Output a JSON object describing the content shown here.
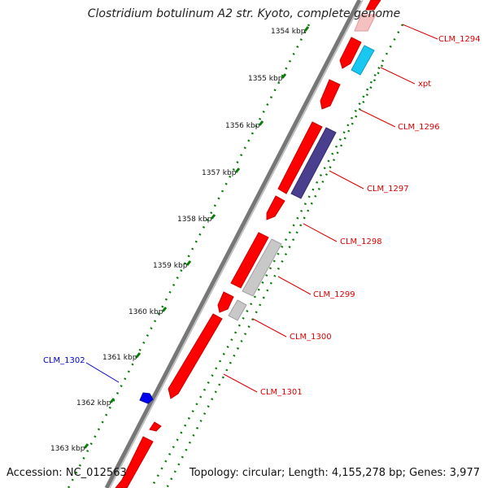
{
  "title": "Clostridium botulinum A2 str. Kyoto, complete genome",
  "footer": {
    "accession": "Accession: NC_012563",
    "summary": "Topology: circular; Length: 4,155,278 bp; Genes: 3,977"
  },
  "colors": {
    "forward_gene": "#ff0000",
    "reverse_gene": "#ff0000",
    "xpt_gene": "#19c8f0",
    "clm1297_gene": "#4a3f8f",
    "grey_gene": "#c8c8c8",
    "blue_gene": "#0000ee",
    "label_red": "#dd0000",
    "label_blue": "#0000cc",
    "tick_green": "#0a7a0a",
    "backbone": "#888888"
  },
  "ticks": [
    "1354 kbp",
    "1355 kbp",
    "1356 kbp",
    "1357 kbp",
    "1358 kbp",
    "1359 kbp",
    "1360 kbp",
    "1361 kbp",
    "1362 kbp",
    "1363 kbp"
  ],
  "gene_labels": [
    {
      "text": "CLM_1294",
      "color": "red"
    },
    {
      "text": "xpt",
      "color": "red"
    },
    {
      "text": "CLM_1296",
      "color": "red"
    },
    {
      "text": "CLM_1297",
      "color": "red"
    },
    {
      "text": "CLM_1298",
      "color": "red"
    },
    {
      "text": "CLM_1299",
      "color": "red"
    },
    {
      "text": "CLM_1300",
      "color": "red"
    },
    {
      "text": "CLM_1301",
      "color": "red"
    },
    {
      "text": "CLM_1302",
      "color": "blue"
    }
  ]
}
